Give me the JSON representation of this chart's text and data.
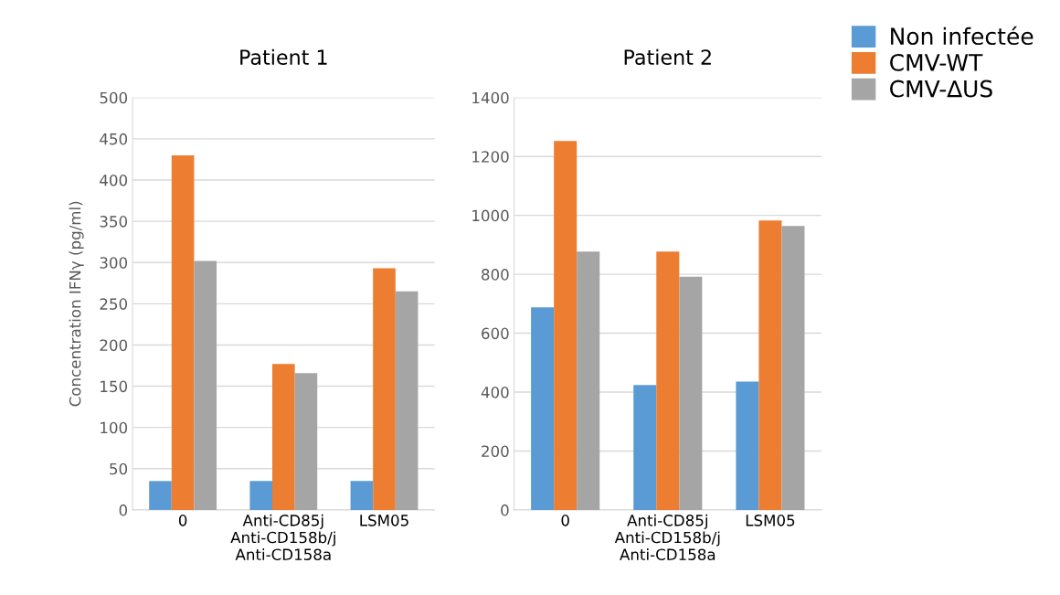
{
  "chart_data": [
    {
      "type": "bar",
      "title": "Patient 1",
      "ylabel": "Concentration IFNγ (pg/ml)",
      "categories": [
        "0",
        "Anti-CD85j\nAnti-CD158b/j\nAnti-CD158a",
        "LSM05"
      ],
      "series": [
        {
          "name": "Non infectée",
          "color": "#5b9bd5",
          "values": [
            35,
            35,
            35
          ]
        },
        {
          "name": "CMV-WT",
          "color": "#ed7d31",
          "values": [
            430,
            177,
            293
          ]
        },
        {
          "name": "CMV-∆US",
          "color": "#a5a5a5",
          "values": [
            302,
            166,
            265
          ]
        }
      ],
      "ylim": [
        0,
        500
      ],
      "yticks": [
        0,
        50,
        100,
        150,
        200,
        250,
        300,
        350,
        400,
        450,
        500
      ],
      "grid": "y",
      "legend": "right"
    },
    {
      "type": "bar",
      "title": "Patient 2",
      "categories": [
        "0",
        "Anti-CD85j\nAnti-CD158b/j\nAnti-CD158a",
        "LSM05"
      ],
      "series": [
        {
          "color": "#5b9bd5",
          "values": [
            688,
            424,
            436
          ]
        },
        {
          "color": "#ed7d31",
          "values": [
            1253,
            877,
            983
          ]
        },
        {
          "color": "#a5a5a5",
          "values": [
            877,
            792,
            964
          ]
        }
      ],
      "ylim": [
        0,
        1400
      ],
      "yticks": [
        0,
        200,
        400,
        600,
        800,
        1000,
        1200,
        1400
      ],
      "grid": "y"
    }
  ]
}
